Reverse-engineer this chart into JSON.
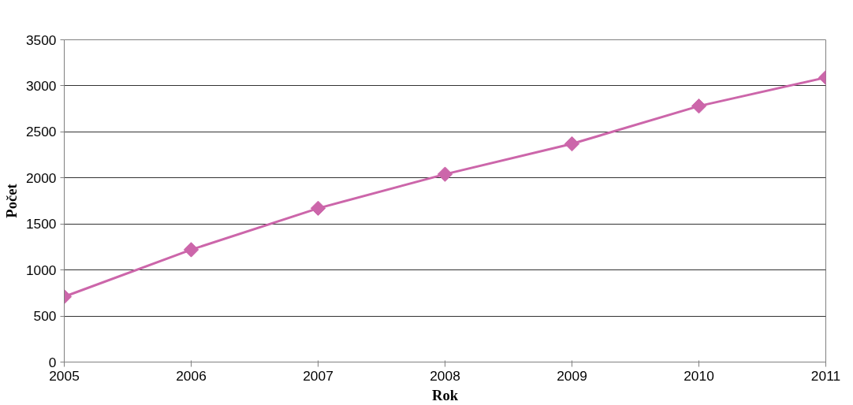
{
  "chart_data": {
    "type": "line",
    "xlabel": "Rok",
    "ylabel": "Počet",
    "x": [
      2005,
      2006,
      2007,
      2008,
      2009,
      2010,
      2011
    ],
    "series": [
      {
        "color": "#cc66aa",
        "values": [
          710,
          1220,
          1670,
          2040,
          2370,
          2780,
          3090
        ]
      }
    ],
    "xlim": [
      2005,
      2011
    ],
    "xticks": [
      2005,
      2006,
      2007,
      2008,
      2009,
      2010,
      2011
    ],
    "ylim": [
      0,
      3500
    ],
    "yticks": [
      0,
      500,
      1000,
      1500,
      2000,
      2500,
      3000,
      3500
    ],
    "grid": "y",
    "marker": "diamond",
    "line_style": "solid"
  }
}
